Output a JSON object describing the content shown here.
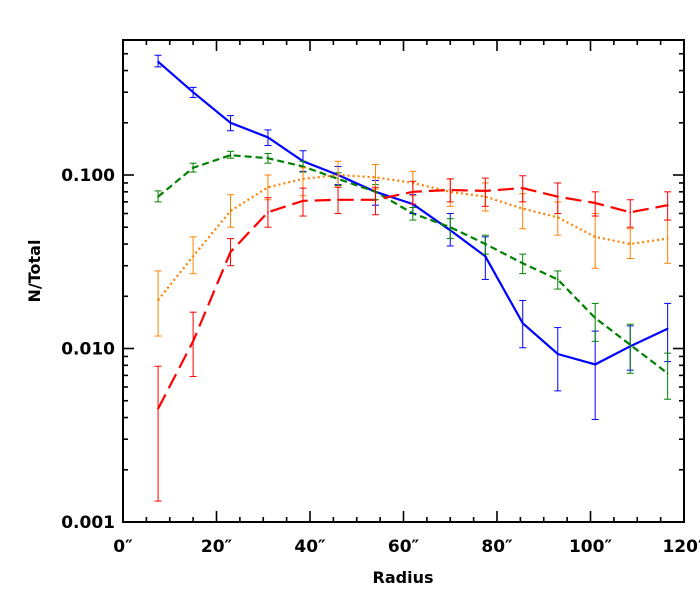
{
  "chart_data": {
    "type": "line",
    "title": "",
    "xlabel": "Radius",
    "ylabel": "N/Total",
    "x_unit_suffix": "″",
    "xlim": [
      0,
      120
    ],
    "ylim": [
      0.001,
      0.6
    ],
    "y_scale": "log",
    "grid": false,
    "legend": "none",
    "x_ticks": [
      {
        "value": 0,
        "label": "0″"
      },
      {
        "value": 20,
        "label": "20″"
      },
      {
        "value": 40,
        "label": "40″"
      },
      {
        "value": 60,
        "label": "60″"
      },
      {
        "value": 80,
        "label": "80″"
      },
      {
        "value": 100,
        "label": "100″"
      },
      {
        "value": 120,
        "label": "120″"
      }
    ],
    "y_ticks": [
      {
        "value": 0.001,
        "label": "0.001"
      },
      {
        "value": 0.01,
        "label": "0.010"
      },
      {
        "value": 0.1,
        "label": "0.100"
      }
    ],
    "x": [
      7.5,
      15,
      23,
      31,
      38.5,
      46,
      54,
      62,
      70,
      77.5,
      85.5,
      93,
      101,
      108.5,
      116.5
    ],
    "series": [
      {
        "color": "#0000ff",
        "dash": "solid",
        "values": [
          0.45,
          0.3,
          0.2,
          0.165,
          0.12,
          0.1,
          0.08,
          0.068,
          0.048,
          0.034,
          0.014,
          0.0093,
          0.0081,
          0.0103,
          0.013
        ],
        "err_lo": [
          0.42,
          0.28,
          0.18,
          0.148,
          0.105,
          0.088,
          0.067,
          0.06,
          0.039,
          0.025,
          0.0101,
          0.0057,
          0.0039,
          0.0075,
          0.0084
        ],
        "err_hi": [
          0.49,
          0.32,
          0.22,
          0.182,
          0.138,
          0.112,
          0.093,
          0.077,
          0.06,
          0.044,
          0.0189,
          0.0132,
          0.0126,
          0.0135,
          0.0182
        ]
      },
      {
        "color": "#008000",
        "dash": "short-dash",
        "values": [
          0.075,
          0.11,
          0.13,
          0.125,
          0.112,
          0.095,
          0.08,
          0.06,
          0.05,
          0.04,
          0.031,
          0.025,
          0.015,
          0.0105,
          0.0072
        ],
        "err_lo": [
          0.07,
          0.104,
          0.125,
          0.117,
          0.104,
          0.087,
          0.072,
          0.055,
          0.043,
          0.035,
          0.027,
          0.022,
          0.011,
          0.0072,
          0.0051
        ],
        "err_hi": [
          0.081,
          0.117,
          0.137,
          0.133,
          0.12,
          0.103,
          0.088,
          0.065,
          0.056,
          0.045,
          0.035,
          0.028,
          0.0182,
          0.0138,
          0.0094
        ]
      },
      {
        "color": "#ff8000",
        "dash": "dotted",
        "values": [
          0.019,
          0.034,
          0.062,
          0.085,
          0.095,
          0.1,
          0.097,
          0.09,
          0.08,
          0.075,
          0.064,
          0.057,
          0.044,
          0.04,
          0.043
        ],
        "err_lo": [
          0.0118,
          0.027,
          0.05,
          0.072,
          0.076,
          0.085,
          0.083,
          0.076,
          0.066,
          0.062,
          0.049,
          0.045,
          0.029,
          0.033,
          0.031
        ],
        "err_hi": [
          0.028,
          0.044,
          0.077,
          0.1,
          0.11,
          0.12,
          0.115,
          0.105,
          0.095,
          0.09,
          0.078,
          0.07,
          0.06,
          0.049,
          0.055
        ]
      },
      {
        "color": "#ff0000",
        "dash": "long-dash",
        "values": [
          0.0045,
          0.011,
          0.036,
          0.061,
          0.071,
          0.072,
          0.072,
          0.08,
          0.082,
          0.081,
          0.084,
          0.075,
          0.069,
          0.061,
          0.067
        ],
        "err_lo": [
          0.00132,
          0.0069,
          0.03,
          0.05,
          0.058,
          0.06,
          0.059,
          0.068,
          0.07,
          0.066,
          0.07,
          0.06,
          0.058,
          0.05,
          0.055
        ],
        "err_hi": [
          0.0079,
          0.0162,
          0.043,
          0.074,
          0.084,
          0.085,
          0.085,
          0.092,
          0.095,
          0.096,
          0.099,
          0.09,
          0.08,
          0.072,
          0.08
        ]
      }
    ]
  }
}
